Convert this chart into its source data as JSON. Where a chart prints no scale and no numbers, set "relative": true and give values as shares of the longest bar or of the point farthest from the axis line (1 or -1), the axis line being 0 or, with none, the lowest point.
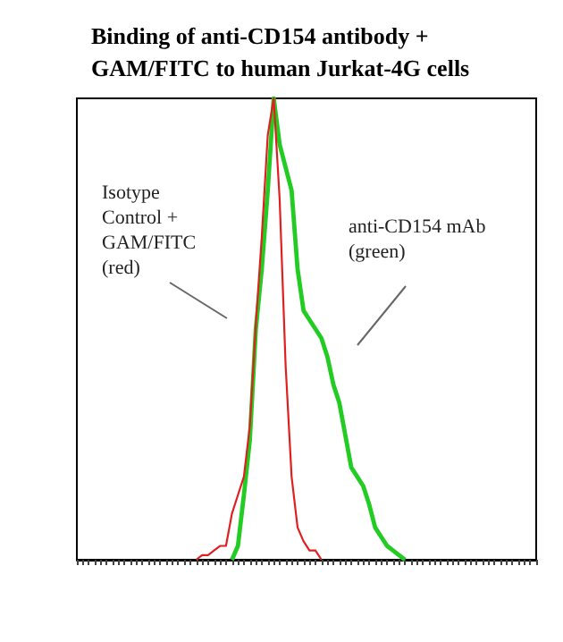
{
  "chart_data": {
    "type": "line",
    "title": "Binding of anti-CD154 antibody +\nGAM/FITC to human Jurkat-4G cells",
    "relative": true,
    "line_style": "solid",
    "categories": [
      null,
      null,
      null,
      null,
      null,
      null,
      null,
      null,
      null,
      null,
      null,
      null,
      null,
      null,
      null,
      null,
      null,
      null,
      null,
      null,
      null,
      null,
      null,
      null,
      null,
      null,
      null,
      null,
      null,
      null,
      null,
      null,
      null,
      null,
      null,
      null,
      null,
      null,
      null,
      null,
      null,
      null,
      null,
      null,
      null,
      null,
      null,
      null,
      null,
      null,
      null,
      null,
      null,
      null,
      null,
      null,
      null,
      null,
      null,
      null,
      null,
      null,
      null,
      null,
      null,
      null,
      null,
      null,
      null,
      null,
      null,
      null,
      null,
      null,
      null,
      null,
      null,
      null
    ],
    "series": [
      {
        "color": "#22cc22",
        "values": [
          null,
          null,
          null,
          null,
          null,
          null,
          null,
          null,
          null,
          null,
          null,
          null,
          null,
          null,
          null,
          null,
          null,
          null,
          null,
          null,
          null,
          null,
          null,
          null,
          null,
          null,
          0,
          0.03,
          0.14,
          0.26,
          0.5,
          0.63,
          0.8,
          1,
          0.9,
          0.85,
          0.8,
          0.63,
          0.54,
          0.52,
          0.5,
          0.48,
          0.44,
          0.38,
          0.34,
          0.27,
          0.2,
          0.18,
          0.16,
          0.12,
          0.07,
          0.05,
          0.03,
          0.02,
          0.01,
          0,
          null,
          null,
          null,
          null,
          null,
          null,
          null,
          null,
          null,
          null,
          null,
          null,
          null,
          null,
          null,
          null,
          null,
          null,
          null,
          null,
          null,
          null
        ]
      },
      {
        "color": "#e02020",
        "values": [
          null,
          null,
          null,
          null,
          null,
          null,
          null,
          null,
          null,
          null,
          null,
          null,
          null,
          null,
          null,
          null,
          null,
          null,
          null,
          null,
          0,
          0.01,
          0.01,
          0.02,
          0.03,
          0.03,
          0.1,
          0.14,
          0.18,
          0.29,
          0.51,
          0.7,
          0.92,
          1,
          0.78,
          0.42,
          0.18,
          0.07,
          0.04,
          0.02,
          0.02,
          0,
          null,
          null,
          null,
          null,
          null,
          null,
          null,
          null,
          null,
          null,
          null,
          null,
          null,
          null,
          null,
          null,
          null,
          null,
          null,
          null,
          null,
          null,
          null,
          null,
          null,
          null,
          null,
          null,
          null,
          null,
          null,
          null,
          null,
          null,
          null,
          null
        ]
      }
    ],
    "annotations": [
      "Isotype\nControl +\nGAM/FITC\n(red)",
      "anti-CD154 mAb\n(green)"
    ]
  }
}
